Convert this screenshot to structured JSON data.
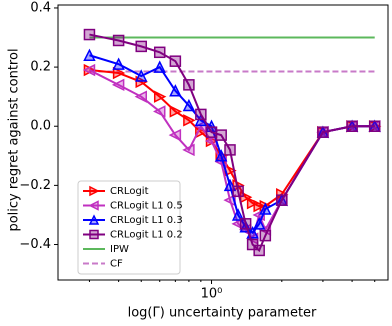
{
  "chart_data": {
    "type": "line",
    "xlabel": "log(Γ) uncertainty parameter",
    "ylabel": "policy regret against control",
    "xscale": "log",
    "xlim": [
      0.22,
      5.7
    ],
    "xticks": [
      {
        "value": 1,
        "label": "10⁰"
      }
    ],
    "xminorticks": [
      0.3,
      0.4,
      0.5,
      0.6,
      0.7,
      0.8,
      0.9,
      2,
      3,
      4,
      5
    ],
    "ylim": [
      -0.52,
      0.41
    ],
    "yticks": [
      0.4,
      0.2,
      {
        "value": 0,
        "label": "0.0"
      },
      {
        "value": -0.2,
        "label": "−0.2"
      },
      {
        "value": -0.4,
        "label": "−0.4"
      }
    ],
    "legend": "lower left",
    "x": [
      0.3,
      0.4,
      0.5,
      0.6,
      0.7,
      0.8,
      0.9,
      1.0,
      1.1,
      1.2,
      1.3,
      1.4,
      1.5,
      1.6,
      1.7,
      2.0,
      3.0,
      4.0,
      5.0
    ],
    "series": [
      {
        "name": "CRLogit",
        "color": "#ff0000",
        "marker": "right",
        "values": [
          0.19,
          0.18,
          0.15,
          0.1,
          0.05,
          0.02,
          -0.02,
          -0.05,
          -0.1,
          -0.15,
          -0.2,
          -0.24,
          -0.26,
          -0.27,
          -0.27,
          -0.23,
          -0.02,
          0.0,
          0.0
        ]
      },
      {
        "name": "CRLogit L1 0.5",
        "color": "#c030c0",
        "marker": "left",
        "values": [
          0.19,
          0.14,
          0.1,
          0.05,
          -0.03,
          -0.08,
          0.0,
          -0.05,
          -0.12,
          -0.25,
          -0.33,
          -0.35,
          -0.38,
          -0.3,
          -0.35,
          -0.25,
          -0.02,
          0.0,
          0.0
        ]
      },
      {
        "name": "CRLogit L1 0.3",
        "color": "#0000ff",
        "marker": "up",
        "values": [
          0.24,
          0.21,
          0.17,
          0.2,
          0.12,
          0.07,
          0.02,
          0.0,
          -0.1,
          -0.2,
          -0.3,
          -0.34,
          -0.36,
          -0.33,
          -0.28,
          -0.25,
          -0.02,
          0.0,
          0.0
        ]
      },
      {
        "name": "CRLogit L1 0.2",
        "color": "#800080",
        "marker": "square",
        "values": [
          0.31,
          0.29,
          0.27,
          0.25,
          0.22,
          0.14,
          0.04,
          -0.02,
          -0.03,
          -0.08,
          -0.22,
          -0.33,
          -0.4,
          -0.42,
          -0.37,
          -0.25,
          -0.02,
          0.0,
          0.0
        ]
      }
    ],
    "hlines": [
      {
        "name": "IPW",
        "color": "#5cb85c",
        "dash": false,
        "value": 0.3
      },
      {
        "name": "CF",
        "color": "#c87ac8",
        "dash": true,
        "value": 0.185
      }
    ]
  }
}
